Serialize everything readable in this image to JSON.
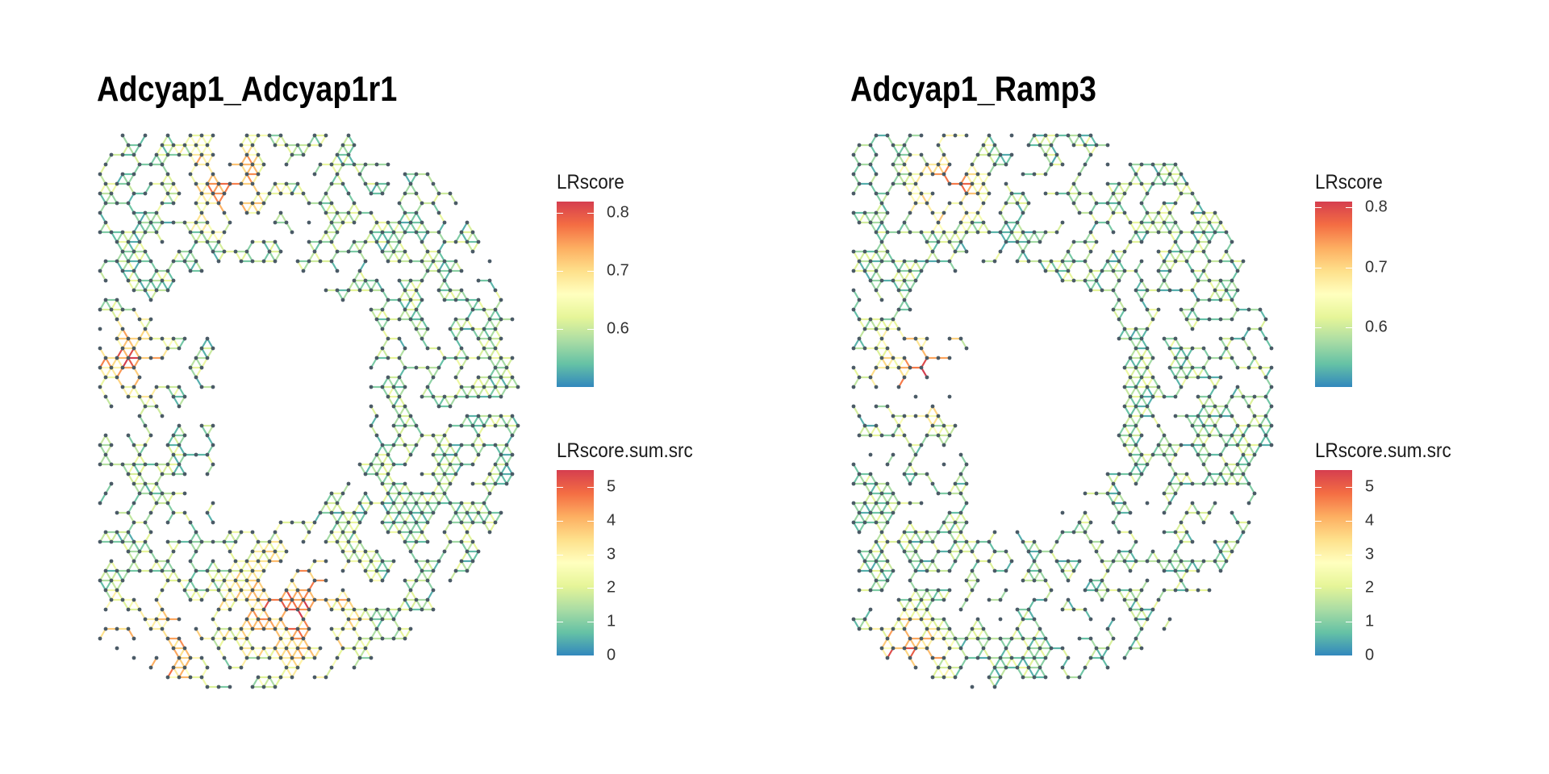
{
  "chart_data": [
    {
      "type": "scatter",
      "title": "Adcyap1_Adcyap1r1",
      "description_kind": "spatial spot network",
      "legends": [
        {
          "title": "LRscore",
          "ticks": [
            "0.6",
            "0.7",
            "0.8"
          ],
          "tick_values": [
            0.6,
            0.7,
            0.8
          ],
          "range": [
            0.5,
            0.82
          ]
        },
        {
          "title": "LRscore.sum.src",
          "ticks": [
            "0",
            "1",
            "2",
            "3",
            "4",
            "5"
          ],
          "tick_values": [
            0,
            1,
            2,
            3,
            4,
            5
          ],
          "range": [
            0,
            5.5
          ]
        }
      ],
      "colors": [
        "#3288bd",
        "#66c2a5",
        "#abdda4",
        "#e6f598",
        "#ffffbf",
        "#fee08b",
        "#fdae61",
        "#f46d43",
        "#d53e4f"
      ]
    },
    {
      "type": "scatter",
      "title": "Adcyap1_Ramp3",
      "description_kind": "spatial spot network",
      "legends": [
        {
          "title": "LRscore",
          "ticks": [
            "0.6",
            "0.7",
            "0.8"
          ],
          "tick_values": [
            0.6,
            0.7,
            0.8
          ],
          "range": [
            0.5,
            0.81
          ]
        },
        {
          "title": "LRscore.sum.src",
          "ticks": [
            "0",
            "1",
            "2",
            "3",
            "4",
            "5"
          ],
          "tick_values": [
            0,
            1,
            2,
            3,
            4,
            5
          ],
          "range": [
            0,
            5.5
          ]
        }
      ],
      "colors": [
        "#3288bd",
        "#66c2a5",
        "#abdda4",
        "#e6f598",
        "#ffffbf",
        "#fee08b",
        "#fdae61",
        "#f46d43",
        "#d53e4f"
      ]
    }
  ]
}
